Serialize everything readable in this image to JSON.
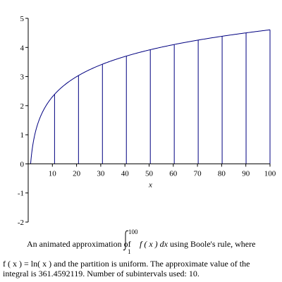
{
  "chart_data": {
    "type": "line",
    "function": "ln(x)",
    "x_range": [
      1,
      100
    ],
    "xlim": [
      0,
      100
    ],
    "ylim": [
      -2,
      5
    ],
    "xlabel": "x",
    "ylabel": "",
    "x_ticks": [
      10,
      20,
      30,
      40,
      50,
      60,
      70,
      80,
      90,
      100
    ],
    "y_ticks": [
      -2,
      -1,
      0,
      1,
      2,
      3,
      4,
      5
    ],
    "partition_lines_x": [
      1,
      10.9,
      20.8,
      30.7,
      40.6,
      50.5,
      60.4,
      70.3,
      80.2,
      90.1,
      100
    ],
    "grid": false,
    "legend": "none",
    "line_color": "#000080"
  },
  "caption": {
    "line1_a": "An animated approximation of",
    "integral_upper": "100",
    "integral_lower": "1",
    "integrand": "f ( x )  dx",
    "line1_b": "using Boole's rule, where",
    "line2": "f ( x ) = ln( x )  and the partition is uniform.  The approximate value of the",
    "line3": "integral is 361.4592119.  Number of subintervals used: 10."
  }
}
